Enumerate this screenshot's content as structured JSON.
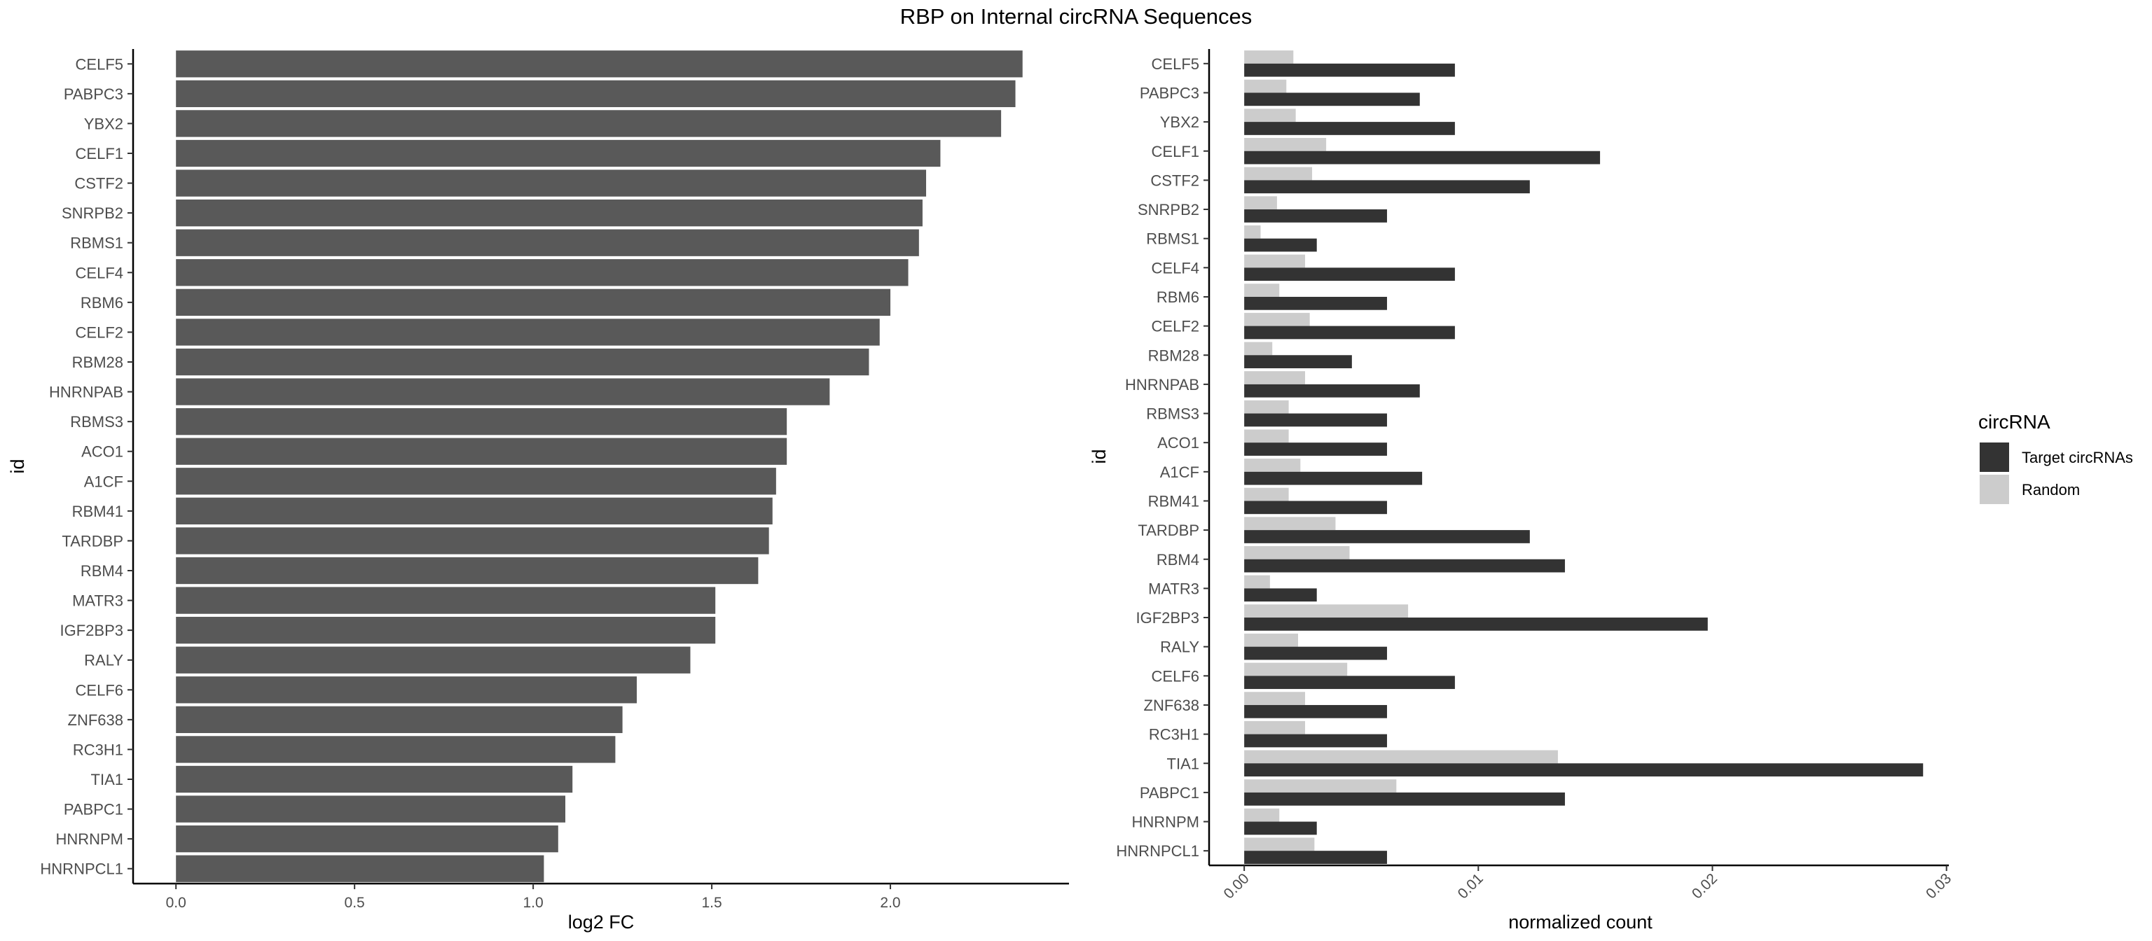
{
  "title": "RBP on Internal circRNA Sequences",
  "chart_data": [
    {
      "type": "bar",
      "orientation": "horizontal",
      "xlabel": "log2 FC",
      "ylabel": "id",
      "xlim": [
        -0.12,
        2.5
      ],
      "xticks": [
        "0.0",
        "0.5",
        "1.0",
        "1.5",
        "2.0"
      ],
      "bar_color": "#595959",
      "categories": [
        "CELF5",
        "PABPC3",
        "YBX2",
        "CELF1",
        "CSTF2",
        "SNRPB2",
        "RBMS1",
        "CELF4",
        "RBM6",
        "CELF2",
        "RBM28",
        "HNRNPAB",
        "RBMS3",
        "ACO1",
        "A1CF",
        "RBM41",
        "TARDBP",
        "RBM4",
        "MATR3",
        "IGF2BP3",
        "RALY",
        "CELF6",
        "ZNF638",
        "RC3H1",
        "TIA1",
        "PABPC1",
        "HNRNPM",
        "HNRNPCL1"
      ],
      "values": [
        2.37,
        2.35,
        2.31,
        2.14,
        2.1,
        2.09,
        2.08,
        2.05,
        2.0,
        1.97,
        1.94,
        1.83,
        1.71,
        1.71,
        1.68,
        1.67,
        1.66,
        1.63,
        1.51,
        1.51,
        1.44,
        1.29,
        1.25,
        1.23,
        1.11,
        1.09,
        1.07,
        1.03
      ]
    },
    {
      "type": "bar",
      "orientation": "horizontal",
      "grouped": true,
      "xlabel": "normalized count",
      "ylabel": "id",
      "xlim": [
        -0.0015,
        0.0301
      ],
      "xticks": [
        "0.00",
        "0.01",
        "0.02",
        "0.03"
      ],
      "categories": [
        "CELF5",
        "PABPC3",
        "YBX2",
        "CELF1",
        "CSTF2",
        "SNRPB2",
        "RBMS1",
        "CELF4",
        "RBM6",
        "CELF2",
        "RBM28",
        "HNRNPAB",
        "RBMS3",
        "ACO1",
        "A1CF",
        "RBM41",
        "TARDBP",
        "RBM4",
        "MATR3",
        "IGF2BP3",
        "RALY",
        "CELF6",
        "ZNF638",
        "RC3H1",
        "TIA1",
        "PABPC1",
        "HNRNPM",
        "HNRNPCL1"
      ],
      "legend": {
        "title": "circRNA",
        "position": "right"
      },
      "series": [
        {
          "name": "Target circRNAs",
          "color": "#333333",
          "values": [
            0.009,
            0.0075,
            0.009,
            0.0152,
            0.0122,
            0.0061,
            0.0031,
            0.009,
            0.0061,
            0.009,
            0.0046,
            0.0075,
            0.0061,
            0.0061,
            0.0076,
            0.0061,
            0.0122,
            0.0137,
            0.0031,
            0.0198,
            0.0061,
            0.009,
            0.0061,
            0.0061,
            0.029,
            0.0137,
            0.0031,
            0.0061
          ]
        },
        {
          "name": "Random",
          "color": "#cccccc",
          "values": [
            0.0021,
            0.0018,
            0.0022,
            0.0035,
            0.0029,
            0.0014,
            0.0007,
            0.0026,
            0.0015,
            0.0028,
            0.0012,
            0.0026,
            0.0019,
            0.0019,
            0.0024,
            0.0019,
            0.0039,
            0.0045,
            0.0011,
            0.007,
            0.0023,
            0.0044,
            0.0026,
            0.0026,
            0.0134,
            0.0065,
            0.0015,
            0.003
          ]
        }
      ]
    }
  ]
}
